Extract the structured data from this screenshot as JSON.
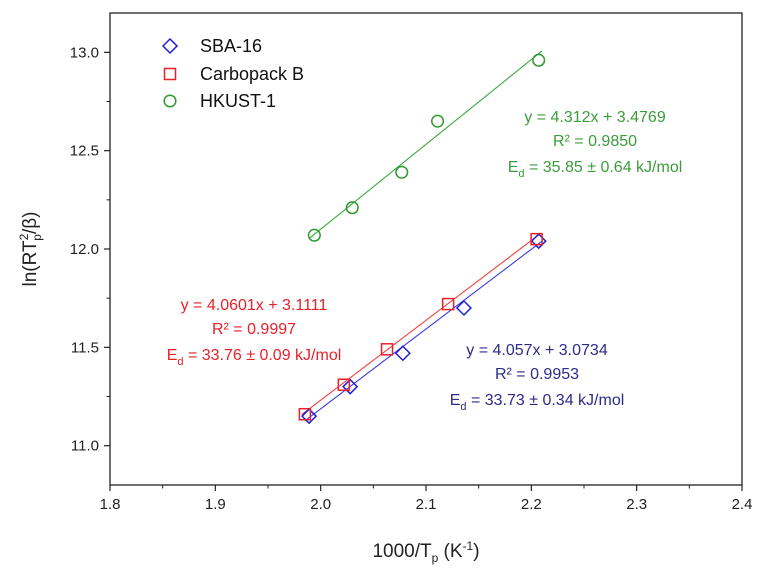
{
  "chart_data": {
    "type": "scatter",
    "title": "",
    "xlabel": {
      "base": "1000/T",
      "sub": "p",
      "unit_open": " (K",
      "sup": "-1",
      "unit_close": ")"
    },
    "ylabel": {
      "pre": "ln(RT",
      "sup": "2",
      "sub": "p",
      "post": "/β)"
    },
    "xlim": [
      1.8,
      2.4
    ],
    "ylim": [
      10.8,
      13.2
    ],
    "xticks": [
      1.8,
      1.9,
      2.0,
      2.1,
      2.2,
      2.3,
      2.4
    ],
    "xtick_labels": [
      "1.8",
      "1.9",
      "2.0",
      "2.1",
      "2.2",
      "2.3",
      "2.4"
    ],
    "yticks": [
      11.0,
      11.5,
      12.0,
      12.5,
      13.0
    ],
    "ytick_labels": [
      "11.0",
      "11.5",
      "12.0",
      "12.5",
      "13.0"
    ],
    "grid": false,
    "legend_position": "top-left",
    "series": [
      {
        "name": "SBA-16",
        "marker": "diamond",
        "color": "#1f1fd6",
        "line_color": "#3a3adf",
        "x": [
          1.989,
          2.028,
          2.078,
          2.136,
          2.207
        ],
        "y": [
          11.15,
          11.3,
          11.47,
          11.7,
          12.04
        ],
        "fit": {
          "slope": 4.057,
          "intercept": 3.0734,
          "x_range": [
            1.985,
            2.21
          ]
        },
        "annotation": {
          "equation": "y = 4.057x + 3.0734",
          "r2": "R² = 0.9953",
          "ed_main": "E",
          "ed_sub": "d",
          "ed_rest": " = 33.73 ± 0.34 kJ/mol",
          "color": "#2b2b8c"
        }
      },
      {
        "name": "Carbopack B",
        "marker": "square",
        "color": "#e8202a",
        "line_color": "#f04040",
        "x": [
          1.985,
          2.022,
          2.063,
          2.121,
          2.205
        ],
        "y": [
          11.16,
          11.31,
          11.49,
          11.72,
          12.05
        ],
        "fit": {
          "slope": 4.0601,
          "intercept": 3.1111,
          "x_range": [
            1.982,
            2.208
          ]
        },
        "annotation": {
          "equation": "y = 4.0601x + 3.1111",
          "r2": "R² = 0.9997",
          "ed_main": "E",
          "ed_sub": "d",
          "ed_rest": " = 33.76 ± 0.09 kJ/mol",
          "color": "#e8202a"
        }
      },
      {
        "name": "HKUST-1",
        "marker": "circle",
        "color": "#2e9a2e",
        "line_color": "#3aa83a",
        "x": [
          1.994,
          2.03,
          2.077,
          2.111,
          2.207
        ],
        "y": [
          12.07,
          12.21,
          12.39,
          12.65,
          12.96
        ],
        "fit": {
          "slope": 4.312,
          "intercept": 3.4769,
          "x_range": [
            1.99,
            2.21
          ]
        },
        "annotation": {
          "equation": "y = 4.312x + 3.4769",
          "r2": "R² = 0.9850",
          "ed_main": "E",
          "ed_sub": "d",
          "ed_rest": " = 35.85 ± 0.64 kJ/mol",
          "color": "#3c9c3c"
        }
      }
    ]
  }
}
